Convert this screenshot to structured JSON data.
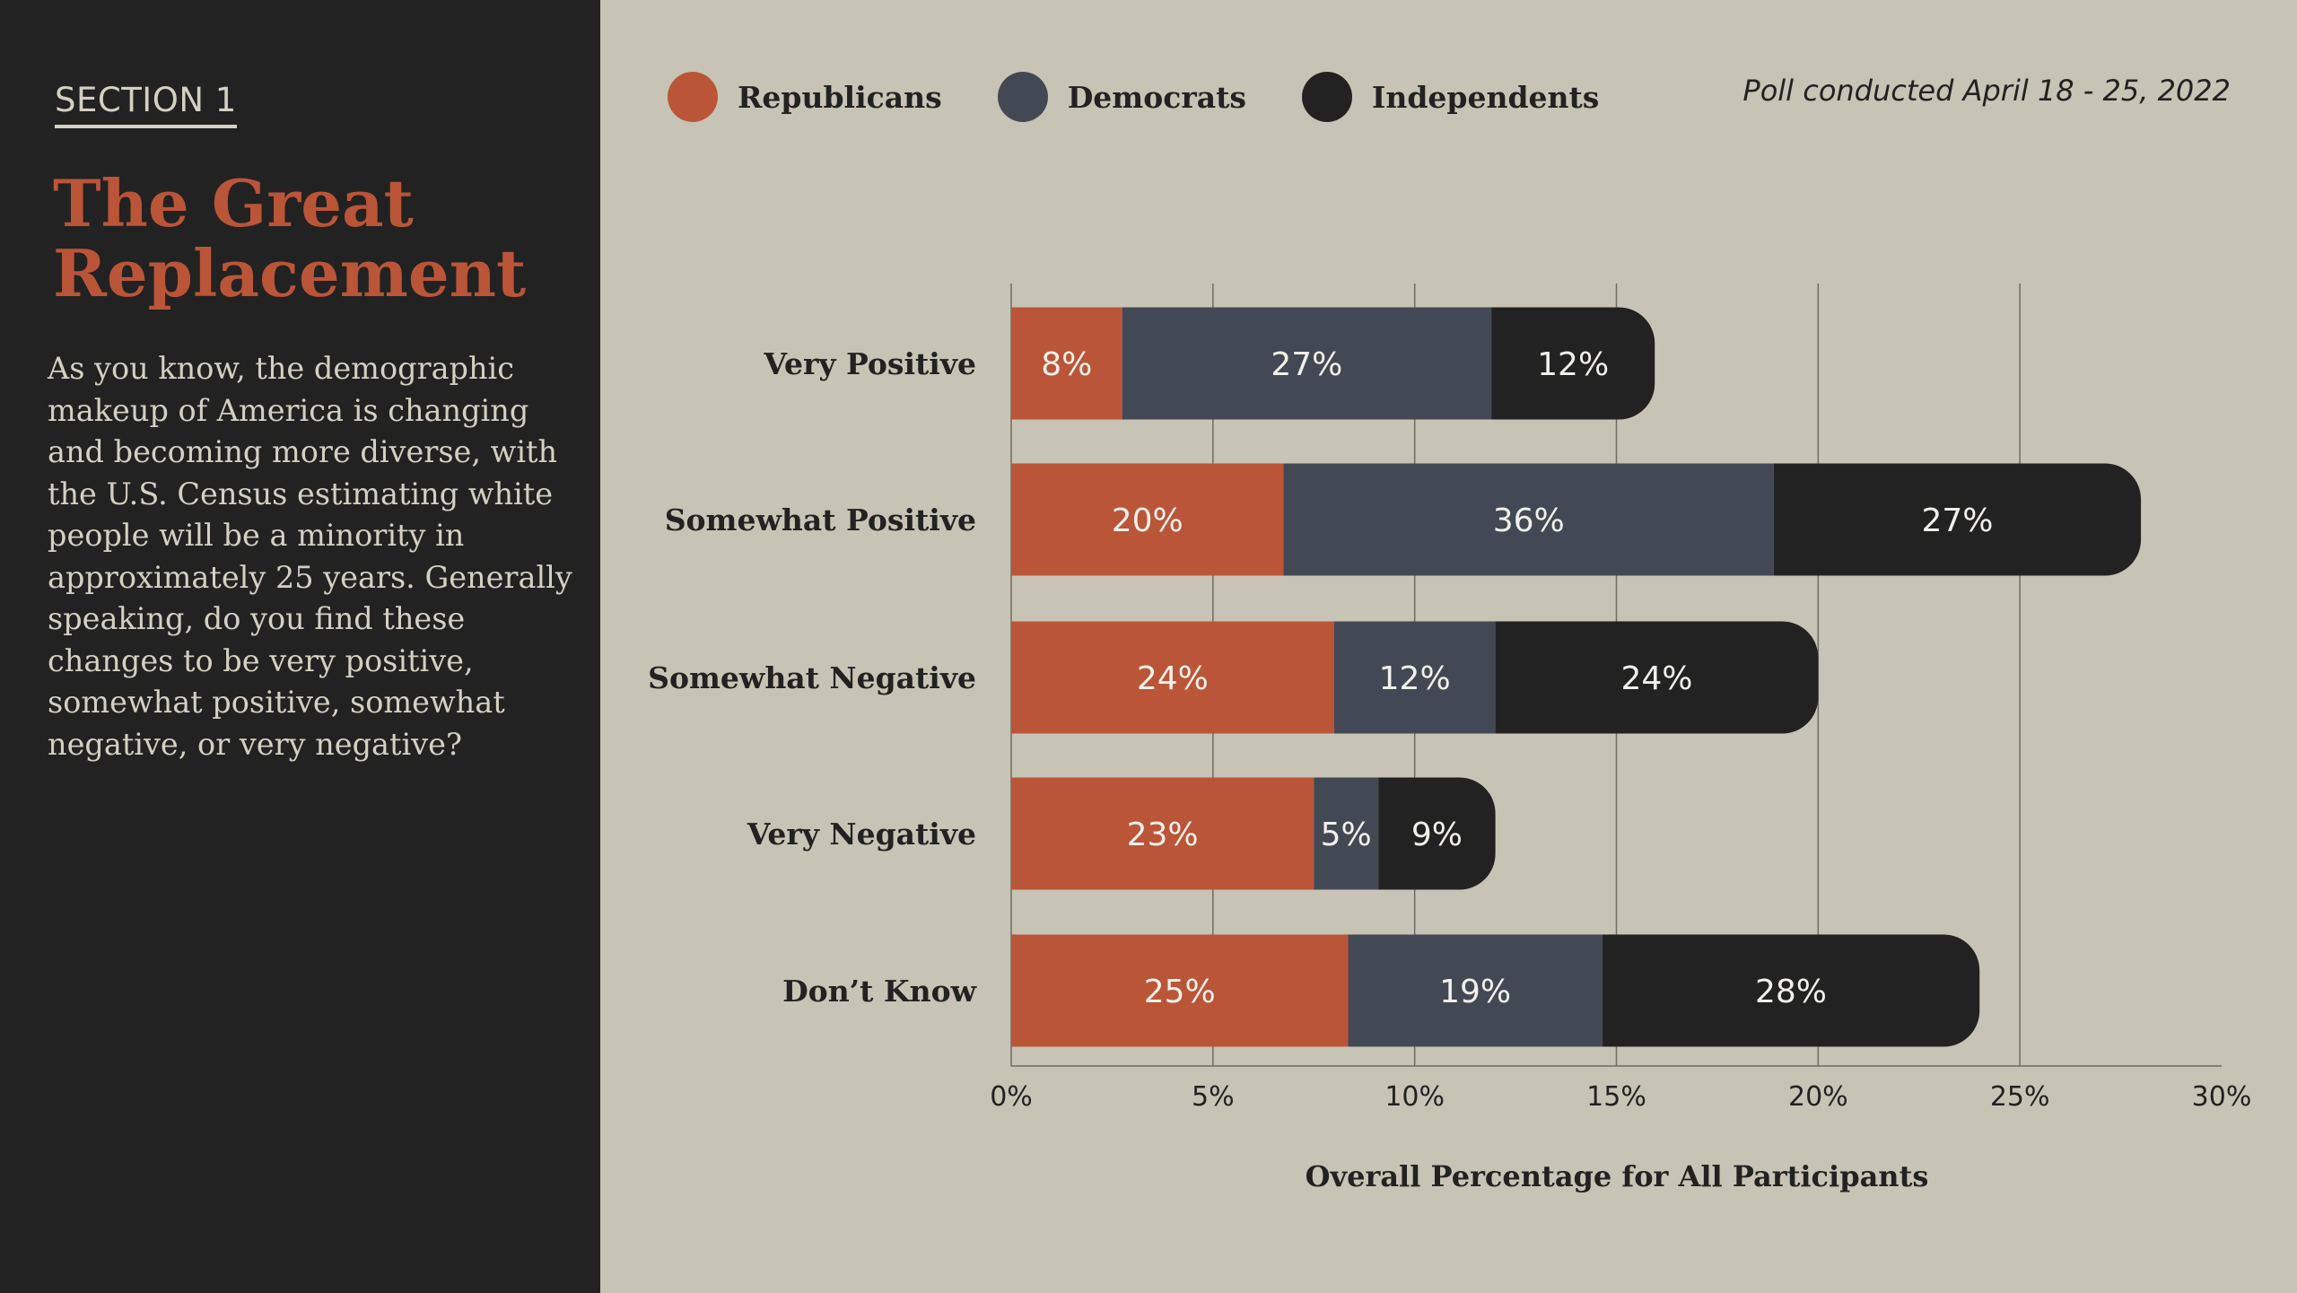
{
  "sidebar": {
    "section_label": "SECTION 1",
    "title": "The Great Replacement",
    "question": "As you know, the demographic makeup of America is changing and becoming more diverse, with the U.S. Census estimating white people will be a minority in approximately 25 years. Generally speaking, do you find these changes to be very positive, somewhat positive, somewhat negative, or very negative?"
  },
  "header": {
    "poll_date": "Poll conducted April 18 - 25, 2022"
  },
  "legend": [
    {
      "label": "Republicans",
      "color": "#bb5538"
    },
    {
      "label": "Democrats",
      "color": "#434954"
    },
    {
      "label": "Independents",
      "color": "#222222"
    }
  ],
  "chart_data": {
    "type": "bar",
    "orientation": "horizontal",
    "stacked": true,
    "categories": [
      "Very Positive",
      "Somewhat Positive",
      "Somewhat Negative",
      "Very Negative",
      "Don’t Know"
    ],
    "series": [
      {
        "name": "Republicans",
        "color": "#bb5538",
        "values": [
          2.75,
          6.75,
          8.0,
          7.5,
          8.35
        ],
        "labels": [
          "8%",
          "20%",
          "24%",
          "23%",
          "25%"
        ]
      },
      {
        "name": "Democrats",
        "color": "#434954",
        "values": [
          9.15,
          12.15,
          4.0,
          1.6,
          6.3
        ],
        "labels": [
          "27%",
          "36%",
          "12%",
          "5%",
          "19%"
        ]
      },
      {
        "name": "Independents",
        "color": "#222222",
        "values": [
          4.05,
          9.1,
          8.0,
          2.9,
          9.35
        ],
        "labels": [
          "12%",
          "27%",
          "24%",
          "9%",
          "28%"
        ]
      }
    ],
    "xlim": [
      0,
      30
    ],
    "x_ticks": [
      0,
      5,
      10,
      15,
      20,
      25,
      30
    ],
    "x_tick_labels": [
      "0%",
      "5%",
      "10%",
      "15%",
      "20%",
      "25%",
      "30%"
    ],
    "xlabel": "Overall Percentage for All Participants",
    "grid": "vertical",
    "legend_position": "top-left"
  }
}
